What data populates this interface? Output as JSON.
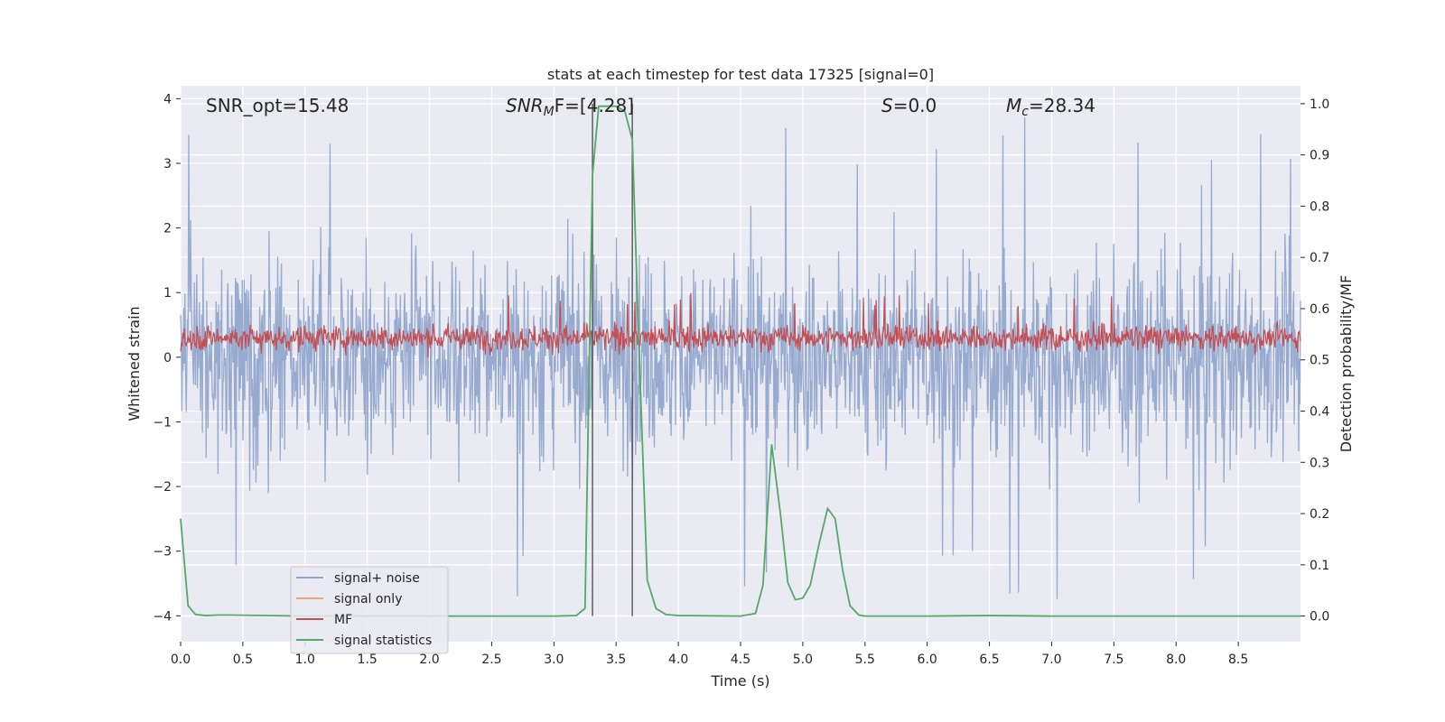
{
  "chart_data": {
    "type": "line",
    "title": "stats at each timestep for test data 17325 [signal=0]",
    "xlabel": "Time (s)",
    "ylabel": "Whitened strain",
    "y2label": "Detection probability/MF",
    "xlim": [
      0.0,
      9.0
    ],
    "ylim": [
      -4.4,
      4.2
    ],
    "y2lim": [
      -0.05,
      1.035
    ],
    "x_ticks": [
      "0.0",
      "0.5",
      "1.0",
      "1.5",
      "2.0",
      "2.5",
      "3.0",
      "3.5",
      "4.0",
      "4.5",
      "5.0",
      "5.5",
      "6.0",
      "6.5",
      "7.0",
      "7.5",
      "8.0",
      "8.5"
    ],
    "y_ticks": [
      "−4",
      "−3",
      "−2",
      "−1",
      "0",
      "1",
      "2",
      "3",
      "4"
    ],
    "y2_ticks": [
      "0.0",
      "0.1",
      "0.2",
      "0.3",
      "0.4",
      "0.5",
      "0.6",
      "0.7",
      "0.8",
      "0.9",
      "1.0"
    ],
    "grid": true,
    "legend_position": "lower-left",
    "annotations": {
      "snr_opt": "SNR_opt=15.48",
      "snr_mf_base": "SNR",
      "snr_mf_sub": "M",
      "snr_mf_rest": "F=[4.28]",
      "s_label": "S",
      "s_rest": "=0.0",
      "mc_base": "M",
      "mc_sub": "c",
      "mc_rest": "=28.34"
    },
    "vertical_markers_x": [
      3.31,
      3.63
    ],
    "series": [
      {
        "name": "signal+ noise",
        "color": "#92a6cc",
        "description": "dense whitened strain noise, roughly within -2.5 to +2.5, occasional spikes to about +3.8 and -4.0",
        "range": [
          -4.0,
          3.8
        ]
      },
      {
        "name": "signal only",
        "color": "#e8a483",
        "description": "flat, not visible"
      },
      {
        "name": "MF",
        "color": "#c44e52",
        "description": "matched filter output, fluctuating about 0.3, roughly between 0.0 and 1.0",
        "range": [
          0.0,
          1.0
        ]
      },
      {
        "name": "signal statistics",
        "color": "#55a868",
        "axis": "right",
        "x": [
          0.0,
          0.06,
          0.12,
          0.2,
          0.3,
          0.4,
          1.0,
          2.0,
          3.0,
          3.18,
          3.25,
          3.31,
          3.36,
          3.42,
          3.5,
          3.57,
          3.63,
          3.68,
          3.75,
          3.82,
          3.9,
          4.0,
          4.5,
          4.62,
          4.68,
          4.75,
          4.82,
          4.88,
          4.94,
          5.0,
          5.06,
          5.13,
          5.2,
          5.26,
          5.32,
          5.38,
          5.45,
          5.5,
          6.0,
          6.5,
          7.0,
          8.0,
          9.0
        ],
        "values": [
          0.19,
          0.02,
          0.003,
          0.001,
          0.002,
          0.002,
          0.0,
          0.0,
          0.0,
          0.001,
          0.015,
          0.86,
          0.995,
          0.995,
          0.995,
          0.985,
          0.93,
          0.55,
          0.07,
          0.015,
          0.003,
          0.001,
          0.0,
          0.005,
          0.06,
          0.335,
          0.2,
          0.065,
          0.032,
          0.035,
          0.06,
          0.14,
          0.21,
          0.19,
          0.09,
          0.02,
          0.002,
          0.0,
          0.0,
          0.001,
          0.0,
          0.0,
          0.0
        ]
      }
    ]
  }
}
